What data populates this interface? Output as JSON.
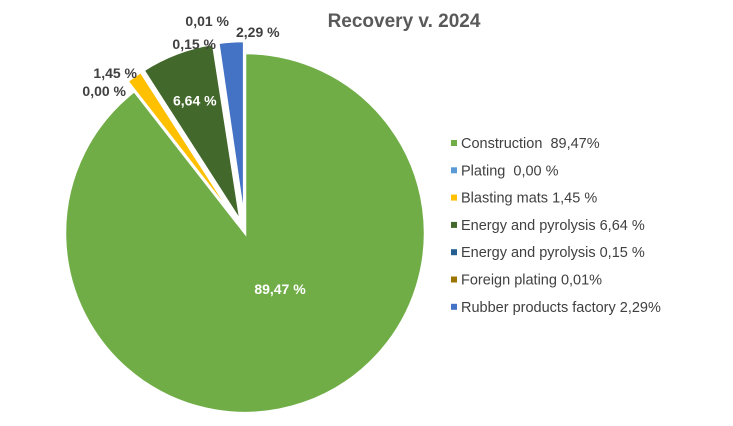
{
  "chart_data": {
    "type": "pie",
    "title": "Recovery v. 2024",
    "slices": [
      {
        "name": "Construction  89,47%",
        "value": 89.47,
        "label": "89,47 %",
        "color": "#70ad47",
        "exploded": false
      },
      {
        "name": "Plating  0,00 %",
        "value": 0.0,
        "label": "0,00 %",
        "color": "#5b9bd5",
        "exploded": true
      },
      {
        "name": "Blasting mats 1,45 %",
        "value": 1.45,
        "label": "1,45 %",
        "color": "#ffc000",
        "exploded": true
      },
      {
        "name": "Energy and pyrolysis 6,64 %",
        "value": 6.64,
        "label": "6,64 %",
        "color": "#43682b",
        "exploded": true
      },
      {
        "name": "Energy and pyrolysis 0,15 %",
        "value": 0.15,
        "label": "0,15 %",
        "color": "#255e91",
        "exploded": true
      },
      {
        "name": "Foreign plating 0,01%",
        "value": 0.01,
        "label": "0,01 %",
        "color": "#9e7400",
        "exploded": true
      },
      {
        "name": "Rubber products factory 2,29%",
        "value": 2.29,
        "label": "2,29 %",
        "color": "#4472c4",
        "exploded": true
      }
    ],
    "legend_position": "right"
  }
}
